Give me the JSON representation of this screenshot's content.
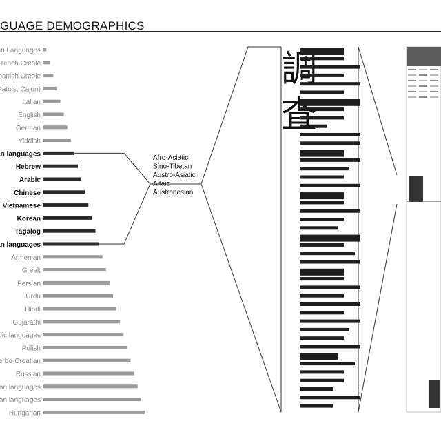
{
  "title": "GUAGE DEMOGRAPHICS",
  "families_label": [
    "Afro-Asiatic",
    "Sino-Tibetan",
    "Austro-Asiatic",
    "Altaic",
    "Austronesian"
  ],
  "kanji": [
    "調",
    "査"
  ],
  "colors": {
    "light": "#9a9a9a",
    "dark": "#2a2a2a",
    "text_light": "#888888",
    "text_dark": "#111111"
  },
  "chart_data": {
    "type": "bar",
    "categories": [
      "an Languages",
      "French Creole",
      "panish Creole",
      "Patois, Cajun)",
      "Italian",
      "English",
      "German",
      "Yiddish",
      "an languages",
      "Hebrew",
      "Arabic",
      "Chinese",
      "Vietnamese",
      "Korean",
      "Tagalog",
      "an languages",
      "Armenian",
      "Greek",
      "Persian",
      "Urdu",
      "Hindi",
      "Gujarathi",
      "dic languages",
      "Polish",
      "erbo-Croatian",
      "Russian",
      "an languages",
      "an languages",
      "Hungarian"
    ],
    "values": [
      1,
      2,
      3,
      4,
      5,
      6,
      7,
      8,
      9,
      10,
      11,
      12,
      13,
      14,
      15,
      16,
      17,
      18,
      19,
      20,
      21,
      22,
      23,
      24,
      25,
      26,
      27,
      28,
      29
    ],
    "highlight": [
      false,
      false,
      false,
      false,
      false,
      false,
      false,
      false,
      true,
      true,
      true,
      true,
      true,
      true,
      true,
      true,
      false,
      false,
      false,
      false,
      false,
      false,
      false,
      false,
      false,
      false,
      false,
      false,
      false
    ],
    "detail_bars": [
      0.4,
      0.4,
      0.55,
      0.4,
      0.55,
      0.4,
      0.55,
      0.4,
      0.4,
      0.25,
      0.55,
      0.55,
      0.4,
      0.55,
      0.45,
      0.4,
      0.55,
      0.4,
      0.4,
      0.55,
      0.4,
      0.35,
      0.55,
      0.4,
      0.5,
      0.55,
      0.4,
      0.4,
      0.55,
      0.4,
      0.55,
      0.4,
      0.55,
      0.45,
      0.4,
      0.55,
      0.35,
      0.5,
      0.4,
      0.4,
      0.3,
      0.55,
      0.3
    ],
    "detail_thick": [
      true,
      false,
      false,
      false,
      false,
      false,
      true,
      false,
      false,
      false,
      false,
      false,
      true,
      false,
      false,
      false,
      false,
      true,
      false,
      false,
      false,
      false,
      true,
      false,
      false,
      false,
      true,
      false,
      false,
      false,
      false,
      false,
      false,
      false,
      false,
      false,
      true,
      false,
      false,
      false,
      false,
      false,
      false
    ]
  }
}
